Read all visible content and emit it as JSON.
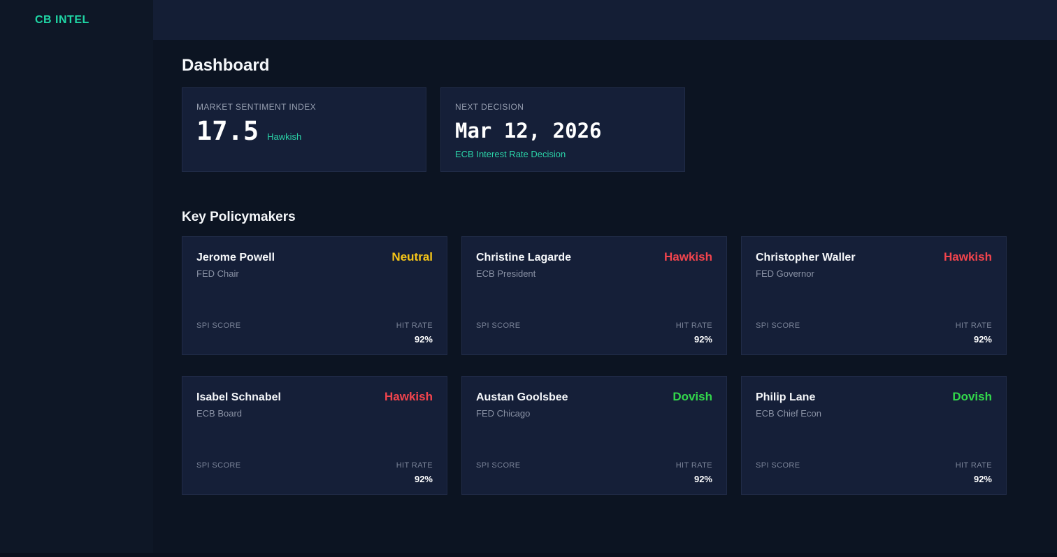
{
  "app": {
    "logo": "CB INTEL"
  },
  "page": {
    "title": "Dashboard",
    "section_title": "Key Policymakers"
  },
  "stats": {
    "sentiment": {
      "label": "MARKET SENTIMENT INDEX",
      "value": "17.5",
      "tag": "Hawkish"
    },
    "next_decision": {
      "label": "NEXT DECISION",
      "value": "Mar 12, 2026",
      "sub": "ECB Interest Rate Decision"
    }
  },
  "policymakers": [
    {
      "name": "Jerome Powell",
      "role": "FED Chair",
      "stance": "Neutral",
      "stance_color": "#f5c518",
      "spi_label": "SPI SCORE",
      "hit_label": "HIT RATE",
      "hit_rate": "92%"
    },
    {
      "name": "Christine Lagarde",
      "role": "ECB President",
      "stance": "Hawkish",
      "stance_color": "#f2444d",
      "spi_label": "SPI SCORE",
      "hit_label": "HIT RATE",
      "hit_rate": "92%"
    },
    {
      "name": "Christopher Waller",
      "role": "FED Governor",
      "stance": "Hawkish",
      "stance_color": "#f2444d",
      "spi_label": "SPI SCORE",
      "hit_label": "HIT RATE",
      "hit_rate": "92%"
    },
    {
      "name": "Isabel Schnabel",
      "role": "ECB Board",
      "stance": "Hawkish",
      "stance_color": "#f2444d",
      "spi_label": "SPI SCORE",
      "hit_label": "HIT RATE",
      "hit_rate": "92%"
    },
    {
      "name": "Austan Goolsbee",
      "role": "FED Chicago",
      "stance": "Dovish",
      "stance_color": "#32d74b",
      "spi_label": "SPI SCORE",
      "hit_label": "HIT RATE",
      "hit_rate": "92%"
    },
    {
      "name": "Philip Lane",
      "role": "ECB Chief Econ",
      "stance": "Dovish",
      "stance_color": "#32d74b",
      "spi_label": "SPI SCORE",
      "hit_label": "HIT RATE",
      "hit_rate": "92%"
    }
  ],
  "colors": {
    "accent_teal": "#1fd6a5",
    "hawkish_red": "#f2444d",
    "dovish_green": "#32d74b",
    "neutral_yellow": "#f5c518"
  }
}
